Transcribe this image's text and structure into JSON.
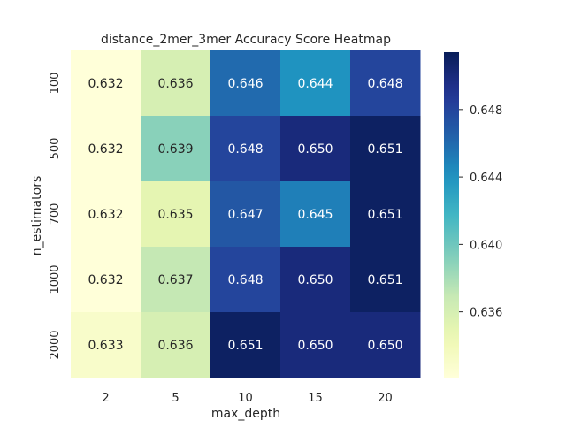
{
  "chart_data": {
    "type": "heatmap",
    "title": "distance_2mer_3mer Accuracy Score Heatmap",
    "xlabel": "max_depth",
    "ylabel": "n_estimators",
    "x_categories": [
      "2",
      "5",
      "10",
      "15",
      "20"
    ],
    "y_categories": [
      "100",
      "500",
      "700",
      "1000",
      "2000"
    ],
    "values": [
      [
        0.632,
        0.636,
        0.646,
        0.644,
        0.648
      ],
      [
        0.632,
        0.639,
        0.648,
        0.65,
        0.651
      ],
      [
        0.632,
        0.635,
        0.647,
        0.645,
        0.651
      ],
      [
        0.632,
        0.637,
        0.648,
        0.65,
        0.651
      ],
      [
        0.633,
        0.636,
        0.651,
        0.65,
        0.65
      ]
    ],
    "value_labels": [
      [
        "0.632",
        "0.636",
        "0.646",
        "0.644",
        "0.648"
      ],
      [
        "0.632",
        "0.639",
        "0.648",
        "0.650",
        "0.651"
      ],
      [
        "0.632",
        "0.635",
        "0.647",
        "0.645",
        "0.651"
      ],
      [
        "0.632",
        "0.637",
        "0.648",
        "0.650",
        "0.651"
      ],
      [
        "0.633",
        "0.636",
        "0.651",
        "0.650",
        "0.650"
      ]
    ],
    "colormap": "YlGnBu",
    "color_range": [
      0.6321,
      0.6514
    ],
    "colorbar_ticks": [
      "0.636",
      "0.640",
      "0.644",
      "0.648"
    ],
    "colorbar_tick_values": [
      0.636,
      0.64,
      0.644,
      0.648
    ],
    "grid": false,
    "legend": "colorbar-right"
  }
}
